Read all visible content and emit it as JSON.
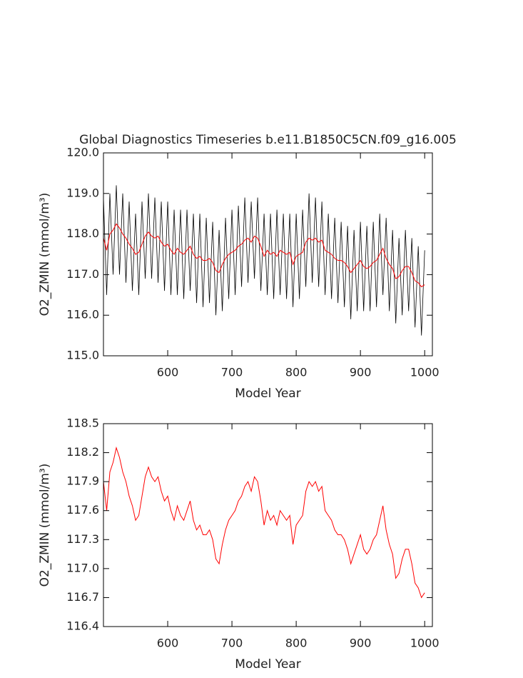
{
  "chart_data": [
    {
      "type": "line",
      "title": "Global Diagnostics Timeseries b.e11.B1850C5CN.f09_g16.005",
      "xlabel": "Model Year",
      "ylabel": "O2_ZMIN (mmol/m³)",
      "xlim": [
        500,
        1012
      ],
      "xticks": [
        600,
        700,
        800,
        900,
        1000
      ],
      "ylim": [
        115,
        120
      ],
      "yticks": [
        {
          "value": 115,
          "label": "115.0"
        },
        {
          "value": 116,
          "label": "116.0"
        },
        {
          "value": 117,
          "label": "117.0"
        },
        {
          "value": 118,
          "label": "118.0"
        },
        {
          "value": 119,
          "label": "119.0"
        },
        {
          "value": 120,
          "label": "120.0"
        }
      ],
      "x": [
        500,
        505,
        510,
        515,
        520,
        525,
        530,
        535,
        540,
        545,
        550,
        555,
        560,
        565,
        570,
        575,
        580,
        585,
        590,
        595,
        600,
        605,
        610,
        615,
        620,
        625,
        630,
        635,
        640,
        645,
        650,
        655,
        660,
        665,
        670,
        675,
        680,
        685,
        690,
        695,
        700,
        705,
        710,
        715,
        720,
        725,
        730,
        735,
        740,
        745,
        750,
        755,
        760,
        765,
        770,
        775,
        780,
        785,
        790,
        795,
        800,
        805,
        810,
        815,
        820,
        825,
        830,
        835,
        840,
        845,
        850,
        855,
        860,
        865,
        870,
        875,
        880,
        885,
        890,
        895,
        900,
        905,
        910,
        915,
        920,
        925,
        930,
        935,
        940,
        945,
        950,
        955,
        960,
        965,
        970,
        975,
        980,
        985,
        990,
        995,
        1000
      ],
      "series": [
        {
          "color": "#000000",
          "values": [
            118.9,
            116.5,
            119.0,
            117.0,
            119.2,
            117.0,
            119.0,
            116.8,
            118.8,
            116.6,
            118.5,
            116.5,
            118.8,
            116.9,
            119.0,
            116.9,
            118.9,
            116.8,
            118.8,
            116.6,
            118.8,
            116.5,
            118.6,
            116.5,
            118.6,
            116.4,
            118.6,
            116.6,
            118.5,
            116.3,
            118.5,
            116.2,
            118.4,
            116.3,
            118.3,
            116.0,
            118.1,
            116.1,
            118.4,
            116.4,
            118.6,
            116.5,
            118.7,
            116.7,
            118.9,
            116.8,
            118.8,
            116.9,
            118.9,
            116.6,
            118.5,
            116.5,
            118.5,
            116.4,
            118.6,
            116.5,
            118.5,
            116.4,
            118.5,
            116.2,
            118.5,
            116.4,
            118.6,
            116.7,
            119.0,
            116.8,
            118.9,
            116.7,
            118.8,
            116.5,
            118.5,
            116.4,
            118.4,
            116.3,
            118.3,
            116.2,
            118.2,
            115.9,
            118.1,
            116.1,
            118.3,
            116.1,
            118.2,
            116.1,
            118.3,
            116.2,
            118.5,
            116.5,
            118.4,
            116.1,
            118.1,
            115.8,
            117.9,
            116.0,
            118.1,
            116.1,
            117.9,
            115.7,
            117.7,
            115.5,
            117.6
          ]
        },
        {
          "color": "#ff0000",
          "values": [
            117.9,
            117.6,
            118.0,
            118.1,
            118.25,
            118.15,
            118.0,
            117.9,
            117.75,
            117.65,
            117.5,
            117.55,
            117.75,
            117.95,
            118.05,
            117.95,
            117.9,
            117.95,
            117.8,
            117.7,
            117.75,
            117.6,
            117.5,
            117.65,
            117.55,
            117.5,
            117.6,
            117.7,
            117.5,
            117.4,
            117.45,
            117.35,
            117.35,
            117.4,
            117.3,
            117.1,
            117.05,
            117.25,
            117.4,
            117.5,
            117.55,
            117.6,
            117.7,
            117.75,
            117.85,
            117.9,
            117.8,
            117.95,
            117.9,
            117.7,
            117.45,
            117.6,
            117.5,
            117.55,
            117.45,
            117.6,
            117.55,
            117.5,
            117.55,
            117.25,
            117.45,
            117.5,
            117.55,
            117.8,
            117.9,
            117.85,
            117.9,
            117.8,
            117.85,
            117.6,
            117.55,
            117.5,
            117.4,
            117.35,
            117.35,
            117.3,
            117.2,
            117.05,
            117.15,
            117.25,
            117.35,
            117.2,
            117.15,
            117.2,
            117.3,
            117.35,
            117.5,
            117.65,
            117.4,
            117.25,
            117.15,
            116.9,
            116.95,
            117.1,
            117.2,
            117.2,
            117.05,
            116.85,
            116.8,
            116.7,
            116.75
          ]
        }
      ]
    },
    {
      "type": "line",
      "xlabel": "Model Year",
      "ylabel": "O2_ZMIN (mmol/m³)",
      "xlim": [
        500,
        1012
      ],
      "xticks": [
        600,
        700,
        800,
        900,
        1000
      ],
      "ylim": [
        116.4,
        118.5
      ],
      "yticks": [
        116.4,
        116.7,
        {
          "value": 117,
          "label": "117.0"
        },
        117.3,
        117.6,
        117.9,
        118.2,
        118.5
      ],
      "x": [
        500,
        505,
        510,
        515,
        520,
        525,
        530,
        535,
        540,
        545,
        550,
        555,
        560,
        565,
        570,
        575,
        580,
        585,
        590,
        595,
        600,
        605,
        610,
        615,
        620,
        625,
        630,
        635,
        640,
        645,
        650,
        655,
        660,
        665,
        670,
        675,
        680,
        685,
        690,
        695,
        700,
        705,
        710,
        715,
        720,
        725,
        730,
        735,
        740,
        745,
        750,
        755,
        760,
        765,
        770,
        775,
        780,
        785,
        790,
        795,
        800,
        805,
        810,
        815,
        820,
        825,
        830,
        835,
        840,
        845,
        850,
        855,
        860,
        865,
        870,
        875,
        880,
        885,
        890,
        895,
        900,
        905,
        910,
        915,
        920,
        925,
        930,
        935,
        940,
        945,
        950,
        955,
        960,
        965,
        970,
        975,
        980,
        985,
        990,
        995,
        1000
      ],
      "series": [
        {
          "color": "#ff0000",
          "values": [
            117.9,
            117.6,
            118.0,
            118.1,
            118.25,
            118.15,
            118.0,
            117.9,
            117.75,
            117.65,
            117.5,
            117.55,
            117.75,
            117.95,
            118.05,
            117.95,
            117.9,
            117.95,
            117.8,
            117.7,
            117.75,
            117.6,
            117.5,
            117.65,
            117.55,
            117.5,
            117.6,
            117.7,
            117.5,
            117.4,
            117.45,
            117.35,
            117.35,
            117.4,
            117.3,
            117.1,
            117.05,
            117.25,
            117.4,
            117.5,
            117.55,
            117.6,
            117.7,
            117.75,
            117.85,
            117.9,
            117.8,
            117.95,
            117.9,
            117.7,
            117.45,
            117.6,
            117.5,
            117.55,
            117.45,
            117.6,
            117.55,
            117.5,
            117.55,
            117.25,
            117.45,
            117.5,
            117.55,
            117.8,
            117.9,
            117.85,
            117.9,
            117.8,
            117.85,
            117.6,
            117.55,
            117.5,
            117.4,
            117.35,
            117.35,
            117.3,
            117.2,
            117.05,
            117.15,
            117.25,
            117.35,
            117.2,
            117.15,
            117.2,
            117.3,
            117.35,
            117.5,
            117.65,
            117.4,
            117.25,
            117.15,
            116.9,
            116.95,
            117.1,
            117.2,
            117.2,
            117.05,
            116.85,
            116.8,
            116.7,
            116.75
          ]
        }
      ]
    }
  ]
}
